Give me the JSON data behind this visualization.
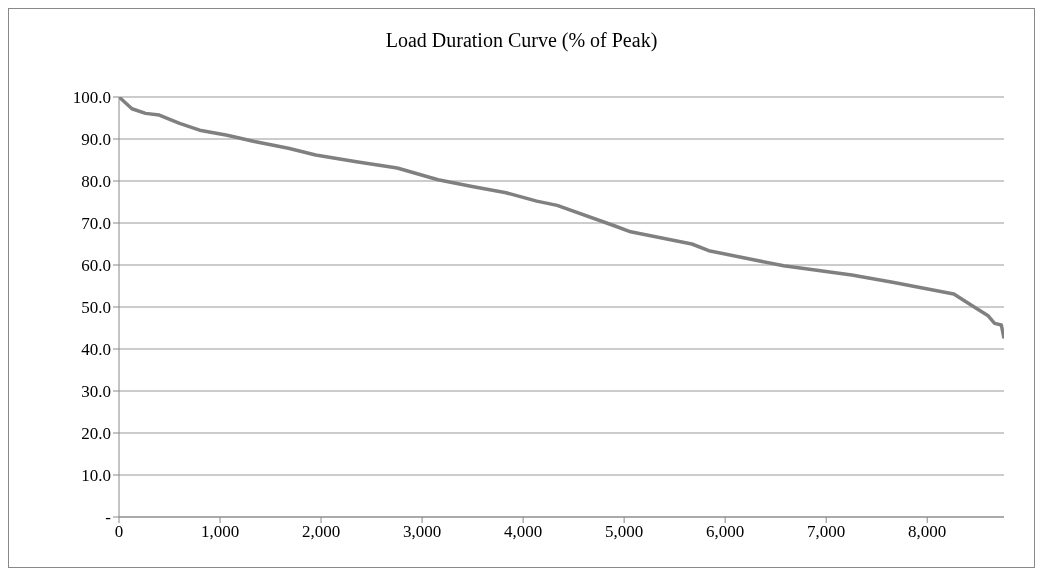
{
  "chart_data": {
    "type": "line",
    "title": "Load Duration Curve (% of Peak)",
    "series": [
      {
        "color": "#808080",
        "x": [
          0,
          128,
          263,
          398,
          600,
          798,
          1071,
          1340,
          1677,
          1946,
          2350,
          2754,
          3158,
          3495,
          3832,
          4135,
          4337,
          4896,
          5064,
          5670,
          5838,
          6579,
          7253,
          7657,
          8263,
          8465,
          8599,
          8667,
          8734,
          8760
        ],
        "values": [
          100,
          97.2,
          96.1,
          95.7,
          93.7,
          92.1,
          90.9,
          89.4,
          87.8,
          86.2,
          84.6,
          83.1,
          80.3,
          78.7,
          77.2,
          75.2,
          74.2,
          69.4,
          67.9,
          65.0,
          63.4,
          59.8,
          57.6,
          55.9,
          53.1,
          50.0,
          48.0,
          46.1,
          45.7,
          42.5
        ]
      }
    ],
    "xlim": [
      0,
      8760
    ],
    "xticks": [
      {
        "value": 0,
        "label": "0"
      },
      {
        "value": 1000,
        "label": "1,000"
      },
      {
        "value": 2000,
        "label": "2,000"
      },
      {
        "value": 3000,
        "label": "3,000"
      },
      {
        "value": 4000,
        "label": "4,000"
      },
      {
        "value": 5000,
        "label": "5,000"
      },
      {
        "value": 6000,
        "label": "6,000"
      },
      {
        "value": 7000,
        "label": "7,000"
      },
      {
        "value": 8000,
        "label": "8,000"
      }
    ],
    "ylim": [
      0,
      100
    ],
    "yticks": [
      {
        "value": 0,
        "label": "-"
      },
      {
        "value": 10,
        "label": "10.0"
      },
      {
        "value": 20,
        "label": "20.0"
      },
      {
        "value": 30,
        "label": "30.0"
      },
      {
        "value": 40,
        "label": "40.0"
      },
      {
        "value": 50,
        "label": "50.0"
      },
      {
        "value": 60,
        "label": "60.0"
      },
      {
        "value": 70,
        "label": "70.0"
      },
      {
        "value": 80,
        "label": "80.0"
      },
      {
        "value": 90,
        "label": "90.0"
      },
      {
        "value": 100,
        "label": "100.0"
      }
    ],
    "grid": "y",
    "marker": "none",
    "line_style": "solid"
  }
}
